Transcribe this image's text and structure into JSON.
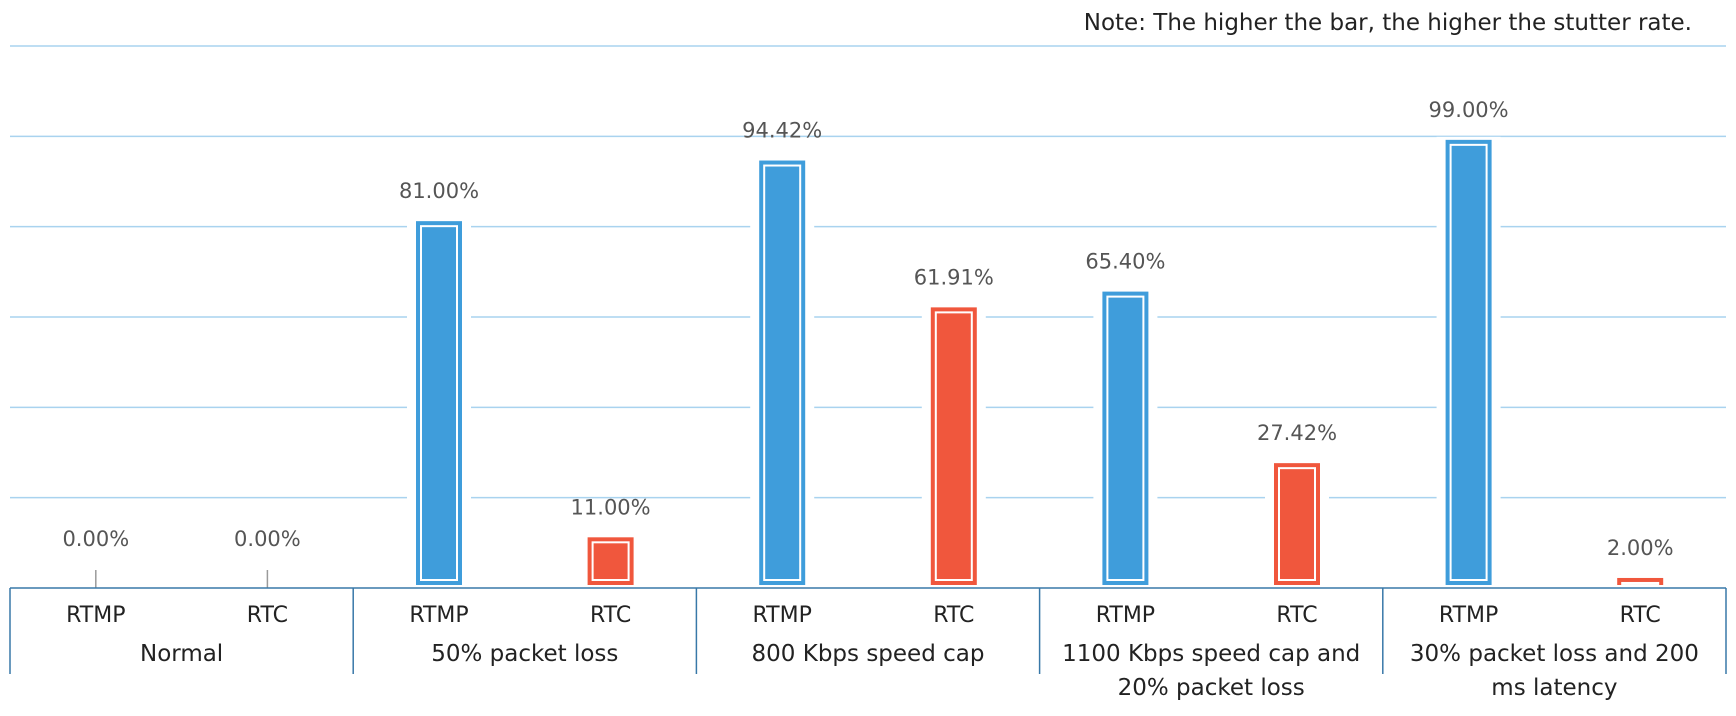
{
  "note": "Note: The higher the bar, the higher the stutter rate.",
  "colors": {
    "rtmp": "#3f9ddb",
    "rtc": "#f0573d",
    "grid": "#a9d3ef",
    "axis": "#3878a8"
  },
  "chart_data": {
    "type": "bar",
    "ylim": [
      0,
      120
    ],
    "grid": true,
    "gridlines": [
      20,
      40,
      60,
      80,
      100,
      120
    ],
    "groups": [
      {
        "label_lines": [
          "Normal"
        ],
        "bars": [
          {
            "name": "RTMP",
            "value": 0.0,
            "label": "0.00%"
          },
          {
            "name": "RTC",
            "value": 0.0,
            "label": "0.00%"
          }
        ]
      },
      {
        "label_lines": [
          "50% packet loss"
        ],
        "bars": [
          {
            "name": "RTMP",
            "value": 81.0,
            "label": "81.00%"
          },
          {
            "name": "RTC",
            "value": 11.0,
            "label": "11.00%"
          }
        ]
      },
      {
        "label_lines": [
          "800 Kbps speed cap"
        ],
        "bars": [
          {
            "name": "RTMP",
            "value": 94.42,
            "label": "94.42%"
          },
          {
            "name": "RTC",
            "value": 61.91,
            "label": "61.91%"
          }
        ]
      },
      {
        "label_lines": [
          "1100 Kbps speed cap and",
          "20% packet loss"
        ],
        "bars": [
          {
            "name": "RTMP",
            "value": 65.4,
            "label": "65.40%"
          },
          {
            "name": "RTC",
            "value": 27.42,
            "label": "27.42%"
          }
        ]
      },
      {
        "label_lines": [
          "30% packet loss and 200",
          "ms latency"
        ],
        "bars": [
          {
            "name": "RTMP",
            "value": 99.0,
            "label": "99.00%"
          },
          {
            "name": "RTC",
            "value": 2.0,
            "label": "2.00%"
          }
        ]
      }
    ]
  }
}
